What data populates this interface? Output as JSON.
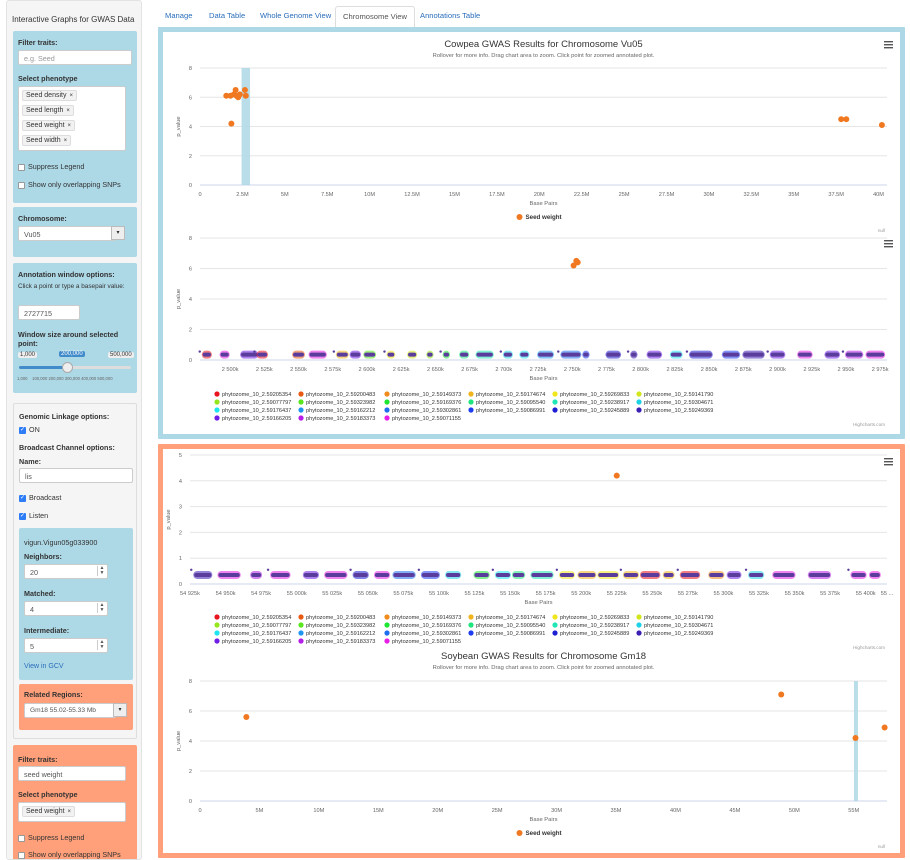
{
  "app": {
    "title": "Interactive Graphs for GWAS Data"
  },
  "tabs": [
    {
      "label": "Manage"
    },
    {
      "label": "Data Table"
    },
    {
      "label": "Whole Genome View"
    },
    {
      "label": "Chromosome View"
    },
    {
      "label": "Annotations Table"
    }
  ],
  "sidebar": {
    "filter1": {
      "filter_label": "Filter traits:",
      "filter_placeholder": "e.g. Seed",
      "phenotype_label": "Select phenotype",
      "phenotypes": [
        "Seed density",
        "Seed length",
        "Seed weight",
        "Seed width"
      ],
      "suppress_legend": "Suppress Legend",
      "show_overlap": "Show only overlapping SNPs"
    },
    "chromosome": {
      "label": "Chromosome:",
      "value": "Vu05"
    },
    "annotation": {
      "label": "Annotation window options:",
      "hint": "Click a point or type a basepair value:",
      "basepair": "2727715",
      "window_label": "Window size around selected point:",
      "slider_min": "1,000",
      "slider_value": "200,000",
      "slider_max": "500,000",
      "ticks": [
        "1,000",
        "100,000",
        "200,000",
        "300,000",
        "400,000",
        "500,000"
      ]
    },
    "linkage": {
      "label": "Genomic Linkage options:",
      "on_label": "ON",
      "broadcast_label": "Broadcast Channel options:",
      "name_label": "Name:",
      "name_value": "lis",
      "broadcast": "Broadcast",
      "listen": "Listen",
      "gene": "vigun.Vigun05g033900",
      "neighbors_label": "Neighbors:",
      "neighbors": "20",
      "matched_label": "Matched:",
      "matched": "4",
      "intermediate_label": "Intermediate:",
      "intermediate": "5",
      "gcv_link": "View in GCV"
    },
    "related": {
      "label": "Related Regions:",
      "value": "Gm18 55.02-55.33 Mb"
    },
    "filter2": {
      "filter_label": "Filter traits:",
      "filter_value": "seed weight",
      "phenotype_label": "Select phenotype",
      "phenotypes": [
        "Seed weight"
      ],
      "suppress_legend": "Suppress Legend",
      "show_overlap": "Show only overlapping SNPs"
    }
  },
  "colors": {
    "orange": "#f07820",
    "highlight": "#add8e6",
    "blue_panel": "#add8e6",
    "salmon_panel": "#ffa07a"
  },
  "legend_entries": [
    {
      "name": "phytozome_10_2.59205354",
      "color": "#e8141e"
    },
    {
      "name": "phytozome_10_2.59200483",
      "color": "#e85a14"
    },
    {
      "name": "phytozome_10_2.59149373",
      "color": "#f08c1e"
    },
    {
      "name": "phytozome_10_2.59174674",
      "color": "#f0b41e"
    },
    {
      "name": "phytozome_10_2.59269833",
      "color": "#f0e61e"
    },
    {
      "name": "phytozome_10_2.59141790",
      "color": "#d2e61e"
    },
    {
      "name": "phytozome_10_2.59077797",
      "color": "#96e61e"
    },
    {
      "name": "phytozome_10_2.59323982",
      "color": "#5ae61e"
    },
    {
      "name": "phytozome_10_2.59169376",
      "color": "#1ee632"
    },
    {
      "name": "phytozome_10_2.59095540",
      "color": "#1ee67d"
    },
    {
      "name": "phytozome_10_2.59238917",
      "color": "#1ee6b4"
    },
    {
      "name": "phytozome_10_2.59304671",
      "color": "#1ed2e6"
    },
    {
      "name": "phytozome_10_2.59176437",
      "color": "#1ee6f0"
    },
    {
      "name": "phytozome_10_2.59162212",
      "color": "#1e96f0"
    },
    {
      "name": "phytozome_10_2.59302861",
      "color": "#1e6ef0"
    },
    {
      "name": "phytozome_10_2.59086991",
      "color": "#1e3cf0"
    },
    {
      "name": "phytozome_10_2.59245889",
      "color": "#1e1ed2"
    },
    {
      "name": "phytozome_10_2.59249369",
      "color": "#3c1eb4"
    },
    {
      "name": "phytozome_10_2.59166205",
      "color": "#6e1ee6"
    },
    {
      "name": "phytozome_10_2.59183373",
      "color": "#b41ee6"
    },
    {
      "name": "phytozome_10_2.59071155",
      "color": "#e61ee6"
    }
  ],
  "chart_data": [
    {
      "type": "scatter",
      "title": "Cowpea GWAS Results for Chromosome Vu05",
      "subtitle": "Rollover for more info. Drag chart area to zoom. Click point for zoomed annotated plot.",
      "xlabel": "Base Pairs",
      "ylabel": "p_value",
      "xlim": [
        0,
        40500000
      ],
      "ylim": [
        0,
        8
      ],
      "xticks": [
        "0",
        "2.5M",
        "5M",
        "7.5M",
        "10M",
        "12.5M",
        "15M",
        "17.5M",
        "20M",
        "22.5M",
        "25M",
        "27.5M",
        "30M",
        "32.5M",
        "35M",
        "37.5M",
        "40M"
      ],
      "yticks": [
        "0",
        "2",
        "4",
        "6",
        "8"
      ],
      "highlight": [
        2450000,
        2950000
      ],
      "series": [
        {
          "name": "Seed weight",
          "color": "#f07820",
          "points": [
            [
              1550000,
              6.1
            ],
            [
              1800000,
              6.1
            ],
            [
              1850000,
              4.2
            ],
            [
              2000000,
              6.2
            ],
            [
              2100000,
              6.5
            ],
            [
              2150000,
              6.1
            ],
            [
              2250000,
              6.0
            ],
            [
              2350000,
              6.2
            ],
            [
              2650000,
              6.5
            ],
            [
              2700000,
              6.1
            ],
            [
              37800000,
              4.5
            ],
            [
              38100000,
              4.5
            ],
            [
              40200000,
              4.1
            ]
          ]
        }
      ],
      "legend": "bottom",
      "credit": "null"
    },
    {
      "type": "scatter",
      "title": "",
      "xlabel": "Base Pairs",
      "ylabel": "p_value",
      "xlim": [
        2478000,
        2980000
      ],
      "ylim": [
        0,
        8
      ],
      "xticks": [
        "2 500k",
        "2 525k",
        "2 550k",
        "2 575k",
        "2 600k",
        "2 625k",
        "2 650k",
        "2 675k",
        "2 700k",
        "2 725k",
        "2 750k",
        "2 775k",
        "2 800k",
        "2 825k",
        "2 850k",
        "2 875k",
        "2 900k",
        "2 925k",
        "2 950k",
        "2 975k"
      ],
      "xtick_values": [
        2500000,
        2525000,
        2550000,
        2575000,
        2600000,
        2625000,
        2650000,
        2675000,
        2700000,
        2725000,
        2750000,
        2775000,
        2800000,
        2825000,
        2850000,
        2875000,
        2900000,
        2925000,
        2950000,
        2975000
      ],
      "yticks": [
        "0",
        "2",
        "4",
        "6",
        "8"
      ],
      "snps": [
        [
          2751000,
          6.2
        ],
        [
          2753000,
          6.5
        ],
        [
          2754000,
          6.4
        ]
      ],
      "genes": [
        [
          2480000,
          2486000,
          0,
          20
        ],
        [
          2493000,
          2499000,
          20,
          20
        ],
        [
          2508000,
          2520000,
          18,
          20
        ],
        [
          2520000,
          2527000,
          0,
          20
        ],
        [
          2546000,
          2554000,
          1,
          20
        ],
        [
          2558000,
          2570000,
          20,
          20
        ],
        [
          2578000,
          2586000,
          3,
          20
        ],
        [
          2588000,
          2595000,
          18,
          20
        ],
        [
          2598000,
          2606000,
          7,
          20
        ],
        [
          2615000,
          2620000,
          4,
          20
        ],
        [
          2630000,
          2636000,
          5,
          20
        ],
        [
          2644000,
          2648000,
          6,
          20
        ],
        [
          2656000,
          2660000,
          8,
          20
        ],
        [
          2668000,
          2674000,
          9,
          20
        ],
        [
          2680000,
          2692000,
          10,
          20
        ],
        [
          2700000,
          2706000,
          11,
          20
        ],
        [
          2712000,
          2718000,
          12,
          20
        ],
        [
          2725000,
          2736000,
          13,
          20
        ],
        [
          2742000,
          2756000,
          14,
          20
        ],
        [
          2758000,
          2762000,
          15,
          20
        ],
        [
          2775000,
          2785000,
          16,
          20
        ],
        [
          2793000,
          2797000,
          17,
          20
        ],
        [
          2805000,
          2815000,
          18,
          20
        ],
        [
          2822000,
          2830000,
          12,
          20
        ],
        [
          2836000,
          2852000,
          16,
          20
        ],
        [
          2860000,
          2872000,
          15,
          20
        ],
        [
          2875000,
          2890000,
          17,
          20
        ],
        [
          2895000,
          2905000,
          18,
          20
        ],
        [
          2915000,
          2925000,
          20,
          20
        ],
        [
          2935000,
          2945000,
          18,
          20
        ],
        [
          2950000,
          2962000,
          19,
          20
        ],
        [
          2965000,
          2978000,
          20,
          20
        ]
      ],
      "legend": "bottom",
      "credit": "Highcharts.com"
    },
    {
      "type": "scatter",
      "title": "",
      "xlabel": "Base Pairs",
      "ylabel": "p_value",
      "xlim": [
        54925000,
        55415000
      ],
      "ylim": [
        0,
        5
      ],
      "xticks": [
        "54 925k",
        "54 950k",
        "54 975k",
        "55 000k",
        "55 025k",
        "55 050k",
        "55 075k",
        "55 100k",
        "55 125k",
        "55 150k",
        "55 175k",
        "55 200k",
        "55 225k",
        "55 250k",
        "55 275k",
        "55 300k",
        "55 325k",
        "55 350k",
        "55 375k",
        "55 400k",
        "55 ..."
      ],
      "xtick_values": [
        54925000,
        54950000,
        54975000,
        55000000,
        55025000,
        55050000,
        55075000,
        55100000,
        55125000,
        55150000,
        55175000,
        55200000,
        55225000,
        55250000,
        55275000,
        55300000,
        55325000,
        55350000,
        55375000,
        55400000,
        55415000
      ],
      "yticks": [
        "0",
        "1",
        "2",
        "3",
        "4",
        "5"
      ],
      "snps": [
        [
          55225000,
          4.2
        ]
      ],
      "genes": [
        [
          54928000,
          54940000,
          17,
          20
        ],
        [
          54945000,
          54960000,
          20,
          20
        ],
        [
          54968000,
          54975000,
          19,
          20
        ],
        [
          54982000,
          54995000,
          20,
          20
        ],
        [
          55005000,
          55015000,
          18,
          20
        ],
        [
          55020000,
          55035000,
          20,
          20
        ],
        [
          55040000,
          55050000,
          16,
          20
        ],
        [
          55055000,
          55065000,
          20,
          20
        ],
        [
          55068000,
          55083000,
          14,
          20
        ],
        [
          55088000,
          55100000,
          15,
          20
        ],
        [
          55105000,
          55115000,
          11,
          20
        ],
        [
          55125000,
          55135000,
          8,
          20
        ],
        [
          55140000,
          55150000,
          12,
          20
        ],
        [
          55152000,
          55160000,
          9,
          20
        ],
        [
          55165000,
          55180000,
          10,
          20
        ],
        [
          55185000,
          55195000,
          4,
          20
        ],
        [
          55198000,
          55210000,
          3,
          20
        ],
        [
          55212000,
          55226000,
          4,
          20
        ],
        [
          55230000,
          55240000,
          3,
          20
        ],
        [
          55242000,
          55255000,
          0,
          20
        ],
        [
          55258000,
          55265000,
          3,
          20
        ],
        [
          55270000,
          55283000,
          0,
          20
        ],
        [
          55290000,
          55300000,
          2,
          20
        ],
        [
          55303000,
          55312000,
          18,
          20
        ],
        [
          55318000,
          55328000,
          11,
          20
        ],
        [
          55335000,
          55350000,
          20,
          20
        ],
        [
          55360000,
          55375000,
          19,
          20
        ],
        [
          55390000,
          55400000,
          20,
          20
        ],
        [
          55403000,
          55410000,
          20,
          20
        ]
      ],
      "legend": "bottom",
      "credit": "Highcharts.com"
    },
    {
      "type": "scatter",
      "title": "Soybean GWAS Results for Chromosome Gm18",
      "subtitle": "Rollover for more info. Drag chart area to zoom. Click point for zoomed annotated plot.",
      "xlabel": "Base Pairs",
      "ylabel": "p_value",
      "xlim": [
        0,
        57800000
      ],
      "ylim": [
        0,
        8
      ],
      "xticks": [
        "0",
        "5M",
        "10M",
        "15M",
        "20M",
        "25M",
        "30M",
        "35M",
        "40M",
        "45M",
        "50M",
        "55M"
      ],
      "yticks": [
        "0",
        "2",
        "4",
        "6",
        "8"
      ],
      "highlight": [
        55020000,
        55330000
      ],
      "series": [
        {
          "name": "Seed weight",
          "color": "#f07820",
          "points": [
            [
              3900000,
              5.6
            ],
            [
              48900000,
              7.1
            ],
            [
              55150000,
              4.2
            ],
            [
              57600000,
              4.9
            ]
          ]
        }
      ],
      "legend": "bottom",
      "credit": "null"
    }
  ]
}
